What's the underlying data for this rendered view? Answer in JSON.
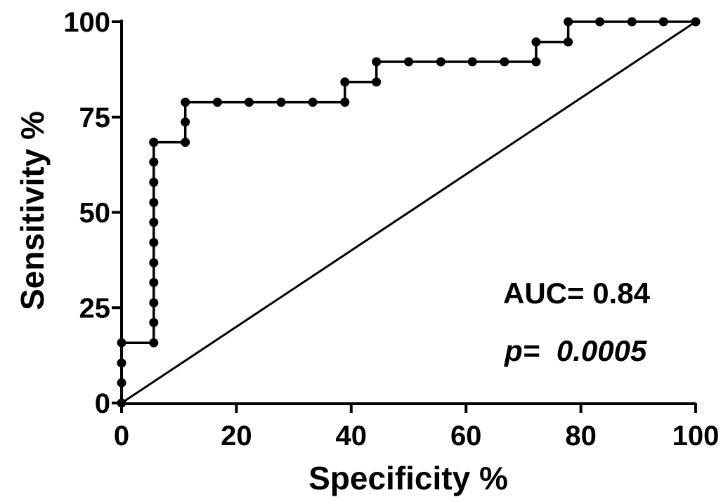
{
  "chart_data": {
    "type": "line",
    "xlabel": "Specificity %",
    "ylabel": "Sensitivity %",
    "xlim": [
      0,
      100
    ],
    "ylim": [
      0,
      100
    ],
    "x_ticks": [
      "0",
      "20",
      "40",
      "60",
      "80",
      "100"
    ],
    "y_ticks": [
      "0",
      "25",
      "50",
      "75",
      "100"
    ],
    "annotations": {
      "auc": "AUC= 0.84",
      "p_prefix": "p=",
      "p_value": "0.0005"
    },
    "series": [
      {
        "type": "step",
        "x": [
          0,
          0,
          0,
          0,
          5.6,
          5.6,
          5.6,
          5.6,
          5.6,
          5.6,
          5.6,
          5.6,
          5.6,
          5.6,
          5.6,
          5.6,
          11.1,
          11.1,
          11.1,
          16.7,
          22.2,
          27.8,
          33.3,
          38.9,
          38.9,
          44.4,
          44.4,
          50.0,
          55.6,
          61.1,
          66.7,
          72.2,
          72.2,
          77.8,
          77.8,
          83.3,
          88.9,
          94.4,
          100
        ],
        "y": [
          0,
          5.3,
          10.5,
          15.8,
          15.8,
          21.1,
          26.3,
          31.6,
          36.8,
          42.1,
          47.4,
          52.6,
          57.9,
          63.2,
          68.4,
          68.4,
          68.4,
          73.7,
          78.9,
          78.9,
          78.9,
          78.9,
          78.9,
          78.9,
          84.2,
          84.2,
          89.5,
          89.5,
          89.5,
          89.5,
          89.5,
          89.5,
          94.7,
          94.7,
          100,
          100,
          100,
          100,
          100
        ]
      },
      {
        "type": "reference",
        "x": [
          0,
          100
        ],
        "y": [
          0,
          100
        ]
      }
    ],
    "grid": false,
    "legend": "none"
  }
}
